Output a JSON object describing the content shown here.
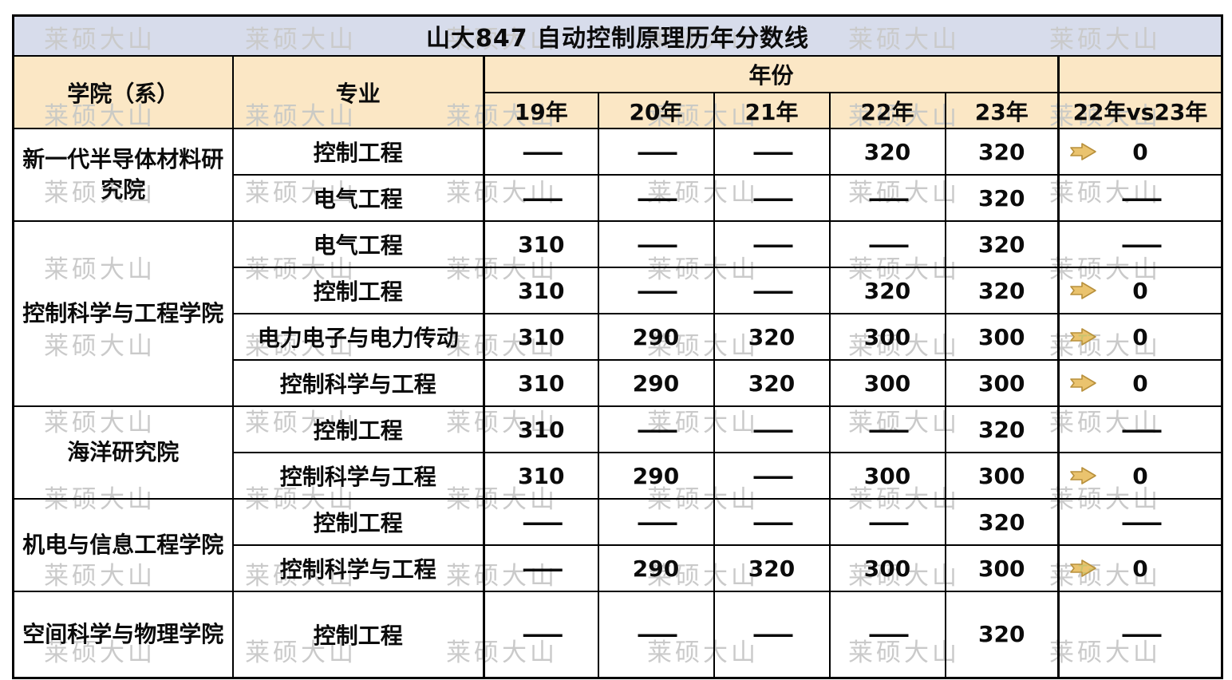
{
  "title": "山大847 自动控制原理历年分数线",
  "watermark": {
    "text": "莱硕大山"
  },
  "colors": {
    "title_bg": "#D7DCEB",
    "header_bg": "#FBE7C5",
    "border": "#000000",
    "arrow_fill": "#EAC36E",
    "arrow_stroke": "#B8903C",
    "watermark": "#CACACA"
  },
  "table": {
    "col_headers": {
      "college": "学院（系）",
      "major": "专业",
      "year_group": "年份",
      "years": [
        "19年",
        "20年",
        "21年",
        "22年",
        "23年"
      ],
      "compare": "22年vs23年"
    },
    "groups": [
      {
        "college": "新一代半导体材料研究院",
        "rows": [
          {
            "major": "控制工程",
            "scores": [
              "——",
              "——",
              "——",
              "320",
              "320"
            ],
            "compare": {
              "icon": "right-arrow",
              "value": "0"
            }
          },
          {
            "major": "电气工程",
            "scores": [
              "——",
              "——",
              "——",
              "——",
              "320"
            ],
            "compare": {
              "icon": null,
              "value": "——"
            }
          }
        ]
      },
      {
        "college": "控制科学与工程学院",
        "rows": [
          {
            "major": "电气工程",
            "scores": [
              "310",
              "——",
              "——",
              "——",
              "320"
            ],
            "compare": {
              "icon": null,
              "value": "——"
            }
          },
          {
            "major": "控制工程",
            "scores": [
              "310",
              "——",
              "——",
              "320",
              "320"
            ],
            "compare": {
              "icon": "right-arrow",
              "value": "0"
            }
          },
          {
            "major": "电力电子与电力传动",
            "scores": [
              "310",
              "290",
              "320",
              "300",
              "300"
            ],
            "compare": {
              "icon": "right-arrow",
              "value": "0"
            }
          },
          {
            "major": "控制科学与工程",
            "scores": [
              "310",
              "290",
              "320",
              "300",
              "300"
            ],
            "compare": {
              "icon": "right-arrow",
              "value": "0"
            }
          }
        ]
      },
      {
        "college": "海洋研究院",
        "rows": [
          {
            "major": "控制工程",
            "scores": [
              "310",
              "——",
              "——",
              "——",
              "320"
            ],
            "compare": {
              "icon": null,
              "value": "——"
            }
          },
          {
            "major": "控制科学与工程",
            "scores": [
              "310",
              "290",
              "——",
              "300",
              "300"
            ],
            "compare": {
              "icon": "right-arrow",
              "value": "0"
            }
          }
        ]
      },
      {
        "college": "机电与信息工程学院",
        "rows": [
          {
            "major": "控制工程",
            "scores": [
              "——",
              "——",
              "——",
              "——",
              "320"
            ],
            "compare": {
              "icon": null,
              "value": "——"
            }
          },
          {
            "major": "控制科学与工程",
            "scores": [
              "——",
              "290",
              "320",
              "300",
              "300"
            ],
            "compare": {
              "icon": "right-arrow",
              "value": "0"
            }
          }
        ]
      },
      {
        "college": "空间科学与物理学院",
        "rows": [
          {
            "major": "控制工程",
            "scores": [
              "——",
              "——",
              "——",
              "——",
              "320"
            ],
            "compare": {
              "icon": null,
              "value": "——"
            }
          }
        ]
      }
    ]
  }
}
